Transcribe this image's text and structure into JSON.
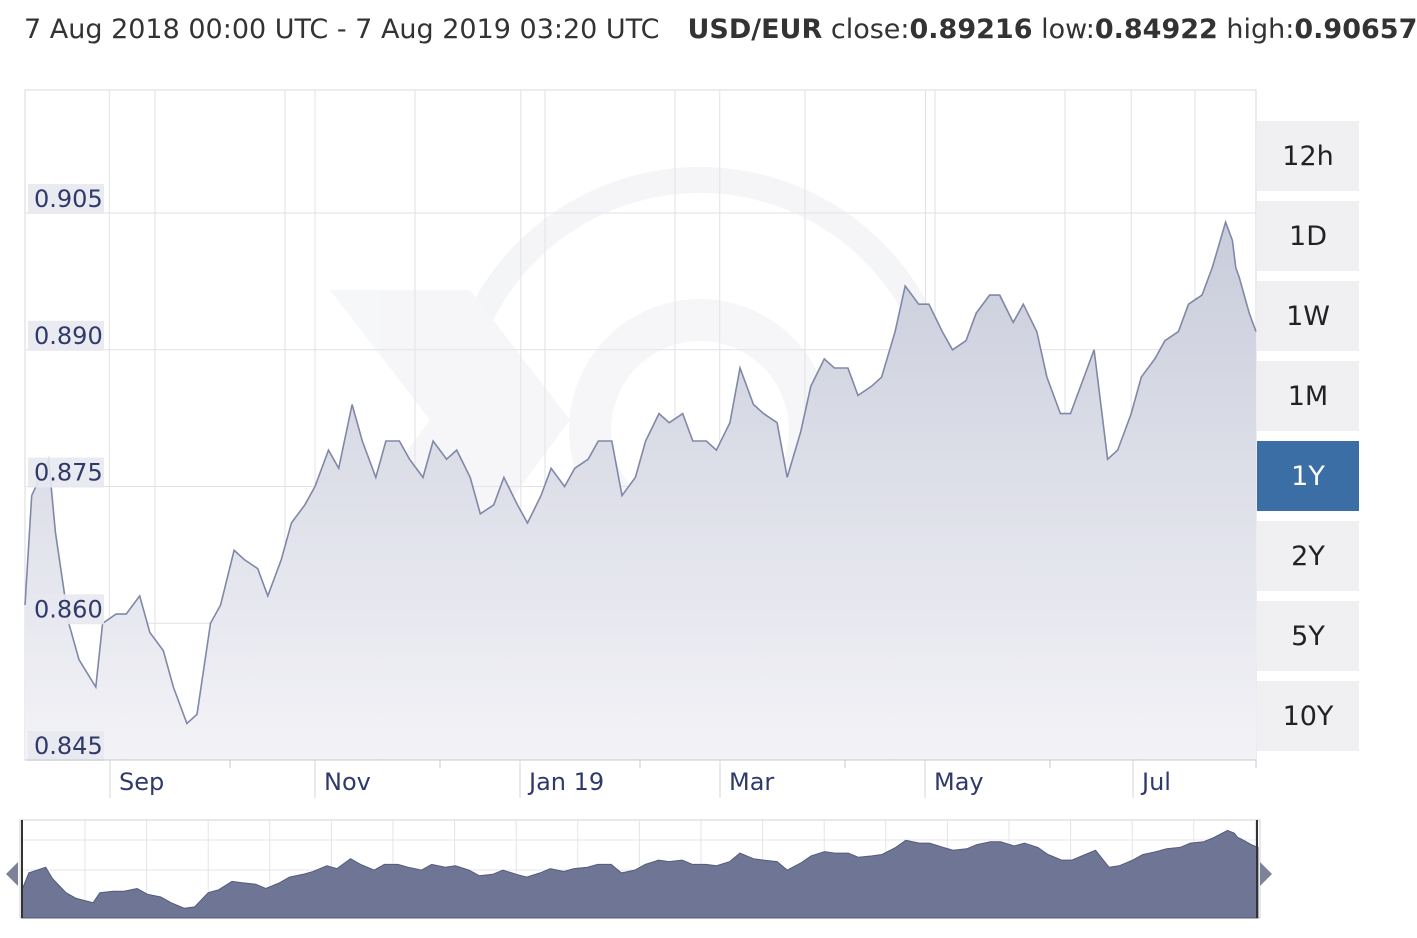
{
  "header": {
    "date_range": "7 Aug 2018 00:00 UTC - 7 Aug 2019 03:20 UTC",
    "pair": "USD/EUR",
    "close_label": "close:",
    "close_value": "0.89216",
    "low_label": "low:",
    "low_value": "0.84922",
    "high_label": "high:",
    "high_value": "0.90657"
  },
  "range_buttons": [
    {
      "label": "12h",
      "active": false
    },
    {
      "label": "1D",
      "active": false
    },
    {
      "label": "1W",
      "active": false
    },
    {
      "label": "1M",
      "active": false
    },
    {
      "label": "1Y",
      "active": true
    },
    {
      "label": "2Y",
      "active": false
    },
    {
      "label": "5Y",
      "active": false
    },
    {
      "label": "10Y",
      "active": false
    }
  ],
  "colors": {
    "line": "#8088a8",
    "area_top": "#c9ccdb",
    "area_bottom": "#f3f3f7",
    "grid": "#e2e2e6",
    "tick_label": "#2f3a6b",
    "tick_bg": "#e8e9f0",
    "active_button": "#3a6ea5",
    "navigator_fill": "#6f7595"
  },
  "chart_data": {
    "type": "area",
    "title": "",
    "xlabel": "",
    "ylabel": "",
    "ylim": [
      0.845,
      0.9185
    ],
    "xlim": [
      "2018-08-07",
      "2019-08-07"
    ],
    "y_ticks": [
      "0.905",
      "0.890",
      "0.875",
      "0.860",
      "0.845"
    ],
    "x_ticks": [
      {
        "label": "Sep",
        "date": "2018-09-01"
      },
      {
        "label": "Nov",
        "date": "2018-11-01"
      },
      {
        "label": "Jan 19",
        "date": "2019-01-01"
      },
      {
        "label": "Mar",
        "date": "2019-03-01"
      },
      {
        "label": "May",
        "date": "2019-05-01"
      },
      {
        "label": "Jul",
        "date": "2019-07-01"
      }
    ],
    "grid": true,
    "navigator": true,
    "series": [
      {
        "name": "USD/EUR",
        "x": [
          "2018-08-07",
          "2018-08-09",
          "2018-08-14",
          "2018-08-16",
          "2018-08-20",
          "2018-08-23",
          "2018-08-28",
          "2018-08-30",
          "2018-09-03",
          "2018-09-06",
          "2018-09-10",
          "2018-09-13",
          "2018-09-17",
          "2018-09-20",
          "2018-09-24",
          "2018-09-27",
          "2018-10-01",
          "2018-10-04",
          "2018-10-08",
          "2018-10-11",
          "2018-10-15",
          "2018-10-18",
          "2018-10-22",
          "2018-10-25",
          "2018-10-29",
          "2018-11-01",
          "2018-11-05",
          "2018-11-08",
          "2018-11-12",
          "2018-11-15",
          "2018-11-19",
          "2018-11-22",
          "2018-11-26",
          "2018-11-29",
          "2018-12-03",
          "2018-12-06",
          "2018-12-10",
          "2018-12-13",
          "2018-12-17",
          "2018-12-20",
          "2018-12-24",
          "2018-12-27",
          "2018-12-31",
          "2019-01-03",
          "2019-01-07",
          "2019-01-10",
          "2019-01-14",
          "2019-01-17",
          "2019-01-21",
          "2019-01-24",
          "2019-01-28",
          "2019-01-31",
          "2019-02-04",
          "2019-02-07",
          "2019-02-11",
          "2019-02-14",
          "2019-02-18",
          "2019-02-21",
          "2019-02-25",
          "2019-02-28",
          "2019-03-04",
          "2019-03-07",
          "2019-03-11",
          "2019-03-14",
          "2019-03-18",
          "2019-03-21",
          "2019-03-25",
          "2019-03-28",
          "2019-04-01",
          "2019-04-04",
          "2019-04-08",
          "2019-04-11",
          "2019-04-15",
          "2019-04-18",
          "2019-04-22",
          "2019-04-25",
          "2019-04-29",
          "2019-05-02",
          "2019-05-06",
          "2019-05-09",
          "2019-05-13",
          "2019-05-16",
          "2019-05-20",
          "2019-05-23",
          "2019-05-27",
          "2019-05-30",
          "2019-06-03",
          "2019-06-06",
          "2019-06-10",
          "2019-06-13",
          "2019-06-17",
          "2019-06-20",
          "2019-06-24",
          "2019-06-27",
          "2019-07-01",
          "2019-07-04",
          "2019-07-08",
          "2019-07-11",
          "2019-07-15",
          "2019-07-18",
          "2019-07-22",
          "2019-07-25",
          "2019-07-29",
          "2019-07-31",
          "2019-08-01",
          "2019-08-02",
          "2019-08-05",
          "2019-08-07"
        ],
        "values": [
          0.862,
          0.874,
          0.878,
          0.87,
          0.86,
          0.856,
          0.853,
          0.86,
          0.861,
          0.861,
          0.863,
          0.859,
          0.857,
          0.853,
          0.849,
          0.85,
          0.86,
          0.862,
          0.868,
          0.867,
          0.866,
          0.863,
          0.867,
          0.871,
          0.873,
          0.875,
          0.879,
          0.877,
          0.884,
          0.88,
          0.876,
          0.88,
          0.88,
          0.878,
          0.876,
          0.88,
          0.878,
          0.879,
          0.876,
          0.872,
          0.873,
          0.876,
          0.873,
          0.871,
          0.874,
          0.877,
          0.875,
          0.877,
          0.878,
          0.88,
          0.88,
          0.874,
          0.876,
          0.88,
          0.883,
          0.882,
          0.883,
          0.88,
          0.88,
          0.879,
          0.882,
          0.888,
          0.884,
          0.883,
          0.882,
          0.876,
          0.881,
          0.886,
          0.889,
          0.888,
          0.888,
          0.885,
          0.886,
          0.887,
          0.892,
          0.897,
          0.895,
          0.895,
          0.892,
          0.89,
          0.891,
          0.894,
          0.896,
          0.896,
          0.893,
          0.895,
          0.892,
          0.887,
          0.883,
          0.883,
          0.887,
          0.89,
          0.878,
          0.879,
          0.883,
          0.887,
          0.889,
          0.891,
          0.892,
          0.895,
          0.896,
          0.899,
          0.904,
          0.902,
          0.899,
          0.898,
          0.894,
          0.892
        ]
      }
    ]
  }
}
